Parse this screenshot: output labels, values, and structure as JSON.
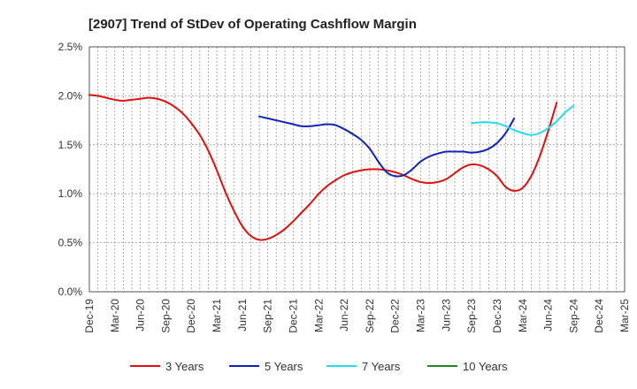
{
  "chart_data": {
    "type": "line",
    "title": "[2907]  Trend of StDev of Operating Cashflow Margin",
    "xlabel": "",
    "ylabel": "",
    "x_ticks": [
      "Dec-19",
      "Mar-20",
      "Jun-20",
      "Sep-20",
      "Dec-20",
      "Mar-21",
      "Jun-21",
      "Sep-21",
      "Dec-21",
      "Mar-22",
      "Jun-22",
      "Sep-22",
      "Dec-22",
      "Mar-23",
      "Jun-23",
      "Sep-23",
      "Dec-23",
      "Mar-24",
      "Jun-24",
      "Sep-24",
      "Dec-24",
      "Mar-25"
    ],
    "y_ticks": [
      "0.0%",
      "0.5%",
      "1.0%",
      "1.5%",
      "2.0%",
      "2.5%"
    ],
    "ylim": [
      0,
      2.5
    ],
    "grid": true,
    "legend_position": "bottom",
    "series": [
      {
        "name": "3 Years",
        "color": "#dd1111",
        "points": [
          [
            "Dec-19",
            2.01
          ],
          [
            "Jan-20",
            2.0
          ],
          [
            "Feb-20",
            1.98
          ],
          [
            "Mar-20",
            1.96
          ],
          [
            "Apr-20",
            1.95
          ],
          [
            "May-20",
            1.96
          ],
          [
            "Jun-20",
            1.97
          ],
          [
            "Jul-20",
            1.98
          ],
          [
            "Aug-20",
            1.97
          ],
          [
            "Sep-20",
            1.94
          ],
          [
            "Oct-20",
            1.89
          ],
          [
            "Nov-20",
            1.82
          ],
          [
            "Dec-20",
            1.72
          ],
          [
            "Jan-21",
            1.6
          ],
          [
            "Feb-21",
            1.44
          ],
          [
            "Mar-21",
            1.24
          ],
          [
            "Apr-21",
            1.02
          ],
          [
            "May-21",
            0.83
          ],
          [
            "Jun-21",
            0.67
          ],
          [
            "Jul-21",
            0.57
          ],
          [
            "Aug-21",
            0.53
          ],
          [
            "Sep-21",
            0.54
          ],
          [
            "Oct-21",
            0.58
          ],
          [
            "Nov-21",
            0.64
          ],
          [
            "Dec-21",
            0.72
          ],
          [
            "Jan-22",
            0.81
          ],
          [
            "Feb-22",
            0.9
          ],
          [
            "Mar-22",
            1.0
          ],
          [
            "Apr-22",
            1.08
          ],
          [
            "May-22",
            1.14
          ],
          [
            "Jun-22",
            1.19
          ],
          [
            "Jul-22",
            1.22
          ],
          [
            "Aug-22",
            1.24
          ],
          [
            "Sep-22",
            1.25
          ],
          [
            "Oct-22",
            1.25
          ],
          [
            "Nov-22",
            1.24
          ],
          [
            "Dec-22",
            1.22
          ],
          [
            "Jan-23",
            1.19
          ],
          [
            "Feb-23",
            1.15
          ],
          [
            "Mar-23",
            1.12
          ],
          [
            "Apr-23",
            1.11
          ],
          [
            "May-23",
            1.12
          ],
          [
            "Jun-23",
            1.15
          ],
          [
            "Jul-23",
            1.21
          ],
          [
            "Aug-23",
            1.27
          ],
          [
            "Sep-23",
            1.3
          ],
          [
            "Oct-23",
            1.29
          ],
          [
            "Nov-23",
            1.25
          ],
          [
            "Dec-23",
            1.18
          ],
          [
            "Jan-24",
            1.07
          ],
          [
            "Feb-24",
            1.03
          ],
          [
            "Mar-24",
            1.06
          ],
          [
            "Apr-24",
            1.18
          ],
          [
            "May-24",
            1.38
          ],
          [
            "Jun-24",
            1.64
          ],
          [
            "Jul-24",
            1.93
          ]
        ]
      },
      {
        "name": "5 Years",
        "color": "#1122bb",
        "points": [
          [
            "Aug-21",
            1.79
          ],
          [
            "Sep-21",
            1.77
          ],
          [
            "Oct-21",
            1.75
          ],
          [
            "Nov-21",
            1.73
          ],
          [
            "Dec-21",
            1.71
          ],
          [
            "Jan-22",
            1.69
          ],
          [
            "Feb-22",
            1.69
          ],
          [
            "Mar-22",
            1.7
          ],
          [
            "Apr-22",
            1.71
          ],
          [
            "May-22",
            1.7
          ],
          [
            "Jun-22",
            1.66
          ],
          [
            "Jul-22",
            1.61
          ],
          [
            "Aug-22",
            1.55
          ],
          [
            "Sep-22",
            1.46
          ],
          [
            "Oct-22",
            1.33
          ],
          [
            "Nov-22",
            1.22
          ],
          [
            "Dec-22",
            1.18
          ],
          [
            "Jan-23",
            1.19
          ],
          [
            "Feb-23",
            1.25
          ],
          [
            "Mar-23",
            1.33
          ],
          [
            "Apr-23",
            1.38
          ],
          [
            "May-23",
            1.41
          ],
          [
            "Jun-23",
            1.43
          ],
          [
            "Jul-23",
            1.43
          ],
          [
            "Aug-23",
            1.43
          ],
          [
            "Sep-23",
            1.42
          ],
          [
            "Oct-23",
            1.43
          ],
          [
            "Nov-23",
            1.46
          ],
          [
            "Dec-23",
            1.52
          ],
          [
            "Jan-24",
            1.62
          ],
          [
            "Feb-24",
            1.77
          ]
        ]
      },
      {
        "name": "7 Years",
        "color": "#22ddee",
        "points": [
          [
            "Sep-23",
            1.72
          ],
          [
            "Oct-23",
            1.73
          ],
          [
            "Nov-23",
            1.73
          ],
          [
            "Dec-23",
            1.72
          ],
          [
            "Jan-24",
            1.69
          ],
          [
            "Feb-24",
            1.65
          ],
          [
            "Mar-24",
            1.62
          ],
          [
            "Apr-24",
            1.6
          ],
          [
            "May-24",
            1.62
          ],
          [
            "Jun-24",
            1.67
          ],
          [
            "Jul-24",
            1.74
          ],
          [
            "Aug-24",
            1.83
          ],
          [
            "Sep-24",
            1.9
          ]
        ]
      },
      {
        "name": "10 Years",
        "color": "#228822",
        "points": []
      }
    ]
  }
}
